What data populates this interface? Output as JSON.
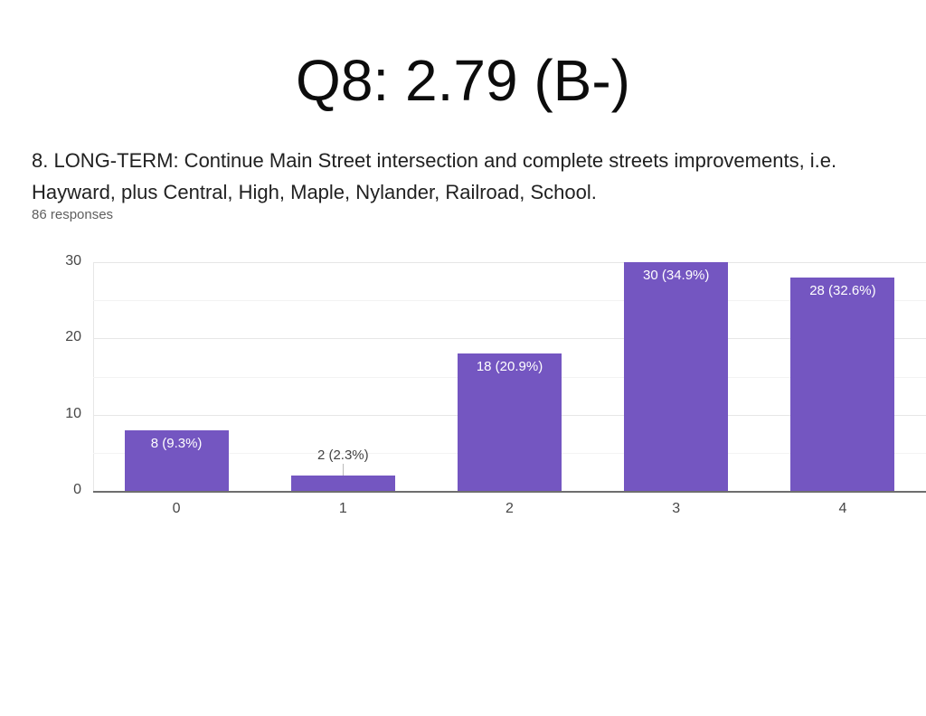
{
  "slide": {
    "title": "Q8: 2.79 (B-)"
  },
  "question": {
    "lines": [
      "8. LONG-TERM: Continue Main Street intersection and complete streets improvements, i.e.",
      "Hayward, plus Central, High, Maple, Nylander, Railroad, School."
    ],
    "full_text": "8. LONG-TERM: Continue Main Street intersection and complete streets improvements, i.e. Hayward, plus Central, High, Maple, Nylander, Railroad, School.",
    "responses_label": "86 responses"
  },
  "chart_data": {
    "type": "bar",
    "title": "",
    "xlabel": "",
    "ylabel": "",
    "categories": [
      "0",
      "1",
      "2",
      "3",
      "4"
    ],
    "values": [
      8,
      2,
      18,
      30,
      28
    ],
    "percentages": [
      9.3,
      2.3,
      20.9,
      34.9,
      32.6
    ],
    "bar_labels": [
      "8 (9.3%)",
      "2 (2.3%)",
      "18 (20.9%)",
      "30 (34.9%)",
      "28 (32.6%)"
    ],
    "total_responses": 86,
    "y_ticks": [
      0,
      10,
      20,
      30
    ],
    "minor_grid_step": 5,
    "ylim": [
      0,
      30
    ],
    "grid": true,
    "legend_position": "none",
    "bar_color": "#7456C1",
    "bar_label_inside_color": "#ffffff",
    "bar_label_outside_color": "#434343",
    "axis_label_color": "#474747",
    "major_grid_color": "#e6e6e6",
    "minor_grid_color": "#f3f3f3",
    "baseline_color": "#6e6e6e"
  }
}
